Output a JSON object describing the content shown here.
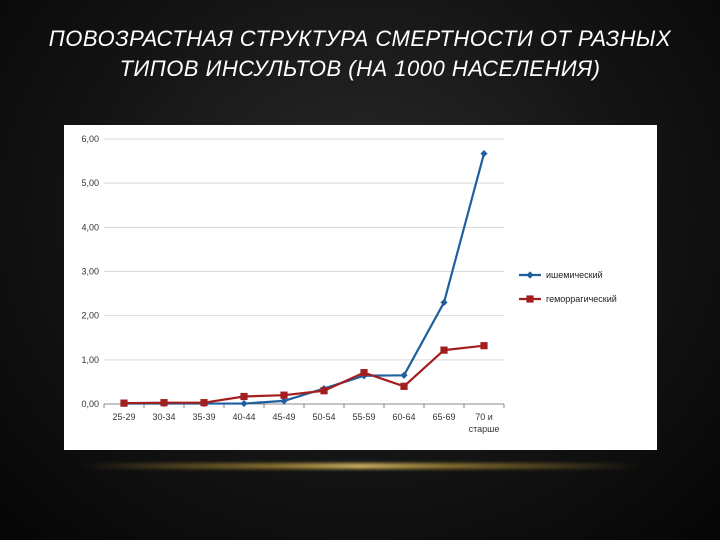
{
  "slide": {
    "title": "ПОВОЗРАСТНАЯ СТРУКТУРА СМЕРТНОСТИ ОТ РАЗНЫХ ТИПОВ ИНСУЛЬТОВ (НА 1000 НАСЕЛЕНИЯ)"
  },
  "chart_data": {
    "type": "line",
    "categories": [
      "25-29",
      "30-34",
      "35-39",
      "40-44",
      "45-49",
      "50-54",
      "55-59",
      "60-64",
      "65-69",
      "70 и старше"
    ],
    "series": [
      {
        "name": "ишемический",
        "color": "#1f5fa0",
        "marker": "diamond",
        "values": [
          0.01,
          0.01,
          0.01,
          0.01,
          0.07,
          0.35,
          0.64,
          0.65,
          2.3,
          5.67
        ]
      },
      {
        "name": "геморрагический",
        "color": "#a31e1e",
        "marker": "square",
        "values": [
          0.02,
          0.03,
          0.03,
          0.17,
          0.2,
          0.3,
          0.71,
          0.4,
          1.22,
          1.32
        ]
      }
    ],
    "ylim": [
      0,
      6
    ],
    "yticks": [
      "0,00",
      "1,00",
      "2,00",
      "3,00",
      "4,00",
      "5,00",
      "6,00"
    ],
    "grid": true,
    "legend_position": "right"
  }
}
